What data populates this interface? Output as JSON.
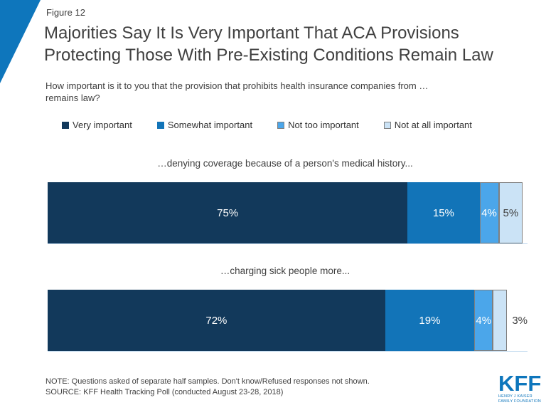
{
  "figure_label": "Figure 12",
  "title": "Majorities Say It Is Very Important That ACA Provisions\nProtecting Those With Pre-Existing Conditions Remain Law",
  "subtitle": "How important is it to you that the provision that prohibits health insurance companies from …\nremains law?",
  "chart_data": {
    "type": "bar",
    "variant": "horizontal-stacked",
    "unit": "percent",
    "xlim": [
      0,
      100
    ],
    "legend_position": "top",
    "series": [
      {
        "name": "Very important",
        "color": "#12395B",
        "label_color": "#FFFFFF"
      },
      {
        "name": "Somewhat important",
        "color": "#1274B8",
        "label_color": "#FFFFFF"
      },
      {
        "name": "Not too important",
        "color": "#4BA6EA",
        "label_color": "#FFFFFF",
        "border": "#7F7F7F"
      },
      {
        "name": "Not at all important",
        "color": "#CBE3F6",
        "label_color": "#404040",
        "border": "#7F7F7F"
      }
    ],
    "rows": [
      {
        "category": "…denying coverage because of a person's medical history...",
        "values": [
          75,
          15,
          4,
          5
        ],
        "labels": [
          "75%",
          "15%",
          "4%",
          "5%"
        ],
        "outside": [
          false,
          false,
          false,
          false
        ]
      },
      {
        "category": "…charging sick people more...",
        "values": [
          72,
          19,
          4,
          3
        ],
        "labels": [
          "72%",
          "19%",
          "4%",
          "3%"
        ],
        "outside": [
          false,
          false,
          false,
          true
        ]
      }
    ]
  },
  "note": "NOTE: Questions asked of separate half samples. Don't know/Refused responses not shown.",
  "source": "SOURCE: KFF Health Tracking Poll (conducted August 23-28, 2018)",
  "logo": {
    "kff": "KFF",
    "subtitle": "HENRY J KAISER\nFAMILY FOUNDATION"
  },
  "colors": {
    "accent": "#0E76BC",
    "text": "#404040"
  }
}
